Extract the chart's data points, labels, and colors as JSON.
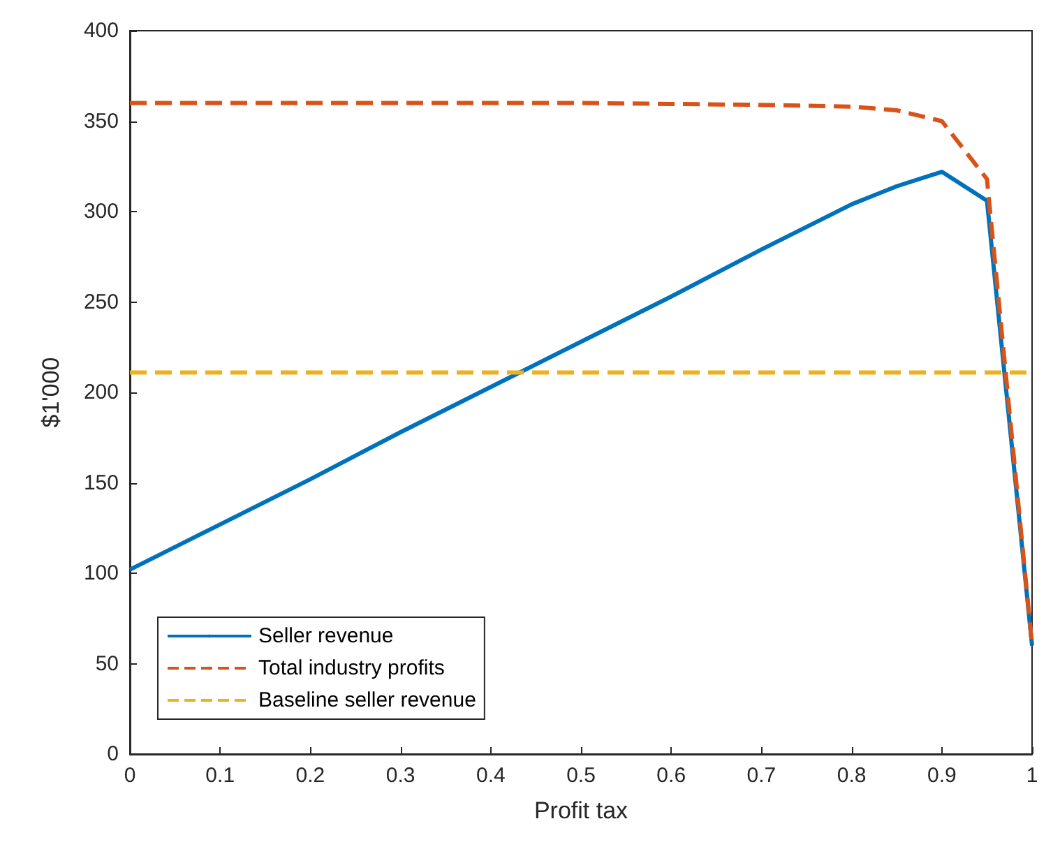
{
  "chart_data": {
    "type": "line",
    "xlabel": "Profit tax",
    "ylabel": "$1'000",
    "xlim": [
      0,
      1
    ],
    "xticks": [
      0,
      0.1,
      0.2,
      0.3,
      0.4,
      0.5,
      0.6,
      0.7,
      0.8,
      0.9,
      1
    ],
    "ylim": [
      0,
      400
    ],
    "yticks": [
      0,
      50,
      100,
      150,
      200,
      250,
      300,
      350,
      400
    ],
    "grid": false,
    "legend": "bottom left",
    "marker": "none",
    "series": [
      {
        "name": "Seller revenue",
        "color": "#0072bd",
        "line_style": "solid",
        "x": [
          0,
          0.1,
          0.2,
          0.3,
          0.4,
          0.5,
          0.6,
          0.7,
          0.8,
          0.85,
          0.9,
          0.95,
          1
        ],
        "values": [
          102,
          127,
          152,
          178,
          203,
          228,
          253,
          279,
          304,
          314,
          322,
          306,
          60
        ]
      },
      {
        "name": "Total industry profits",
        "color": "#d95319",
        "line_style": "dashed",
        "x": [
          0,
          0.1,
          0.2,
          0.3,
          0.4,
          0.5,
          0.6,
          0.7,
          0.8,
          0.85,
          0.9,
          0.95,
          1
        ],
        "values": [
          360,
          360,
          360,
          360,
          360,
          360,
          359.5,
          359,
          358,
          356,
          350,
          318,
          60
        ]
      },
      {
        "name": "Baseline seller revenue",
        "color": "#edb120",
        "line_style": "dashed",
        "x": [
          0,
          1
        ],
        "values": [
          211,
          211
        ]
      }
    ]
  }
}
